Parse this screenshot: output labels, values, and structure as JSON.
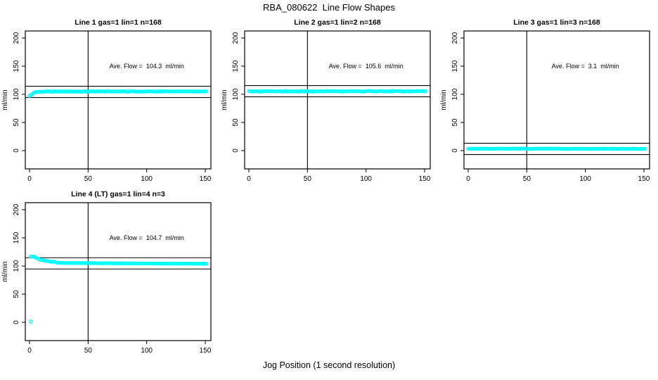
{
  "figure": {
    "title": "RBA_080622  Line Flow Shapes",
    "background": "#ffffff",
    "point_color": "#00ffff",
    "line_color": "#000000"
  },
  "chart_data": {
    "type": "scatter",
    "title": "RBA_080622  Line Flow Shapes",
    "xlabel": "Jog Position (1 second resolution)",
    "ylabel": "ml/min",
    "x_ticks": [
      0,
      50,
      100,
      150
    ],
    "y_ticks": [
      0,
      50,
      100,
      150,
      200
    ],
    "xlim": [
      -3.6,
      154.8
    ],
    "ylim": [
      -32.5,
      212.5
    ],
    "vline_x": 50,
    "grid": false,
    "marker": "open-circle",
    "point_color": "#00ffff",
    "annotation_anchor": {
      "x": 100,
      "y": 150
    },
    "panels": [
      {
        "title": "Line 1 gas=1 lin=1 n=168",
        "annotation": "Ave. Flow =  104.3  ml/min",
        "ave_flow": 104.3,
        "n": 168,
        "gas": 1,
        "lin": 1,
        "ref_lines": [
          114.3,
          94.3
        ],
        "x_start": 0,
        "x_end": 151,
        "anchors": [
          [
            0,
            96.8
          ],
          [
            1,
            98.2
          ],
          [
            2,
            100.2
          ],
          [
            3,
            101.8
          ],
          [
            4,
            103.2
          ],
          [
            5,
            103.9
          ],
          [
            7,
            104.4
          ],
          [
            10,
            104.8
          ],
          [
            15,
            105.0
          ],
          [
            151,
            105.1
          ]
        ],
        "jitter": 0.7,
        "extra_points": [],
        "row": 0,
        "col": 0
      },
      {
        "title": "Line 2 gas=1 lin=2 n=168",
        "annotation": "Ave. Flow =  105.6  ml/min",
        "ave_flow": 105.6,
        "n": 168,
        "gas": 1,
        "lin": 2,
        "ref_lines": [
          115.6,
          95.6
        ],
        "x_start": 0,
        "x_end": 151,
        "anchors": [
          [
            0,
            105.3
          ],
          [
            151,
            105.4
          ]
        ],
        "jitter": 0.8,
        "extra_points": [],
        "row": 0,
        "col": 1
      },
      {
        "title": "Line 3 gas=1 lin=3 n=168",
        "annotation": "Ave. Flow =  3.1  ml/min",
        "ave_flow": 3.1,
        "n": 168,
        "gas": 1,
        "lin": 3,
        "ref_lines": [
          13.1,
          -6.9
        ],
        "x_start": 0,
        "x_end": 151,
        "anchors": [
          [
            0,
            3.4
          ],
          [
            151,
            3.2
          ]
        ],
        "jitter": 0.5,
        "extra_points": [],
        "row": 0,
        "col": 2
      },
      {
        "title": "Line 4 (LT) gas=1 lin=4 n=3",
        "annotation": "Ave. Flow =  104.7  ml/min",
        "ave_flow": 104.7,
        "n": 3,
        "gas": 1,
        "lin": 4,
        "ref_lines": [
          114.7,
          94.7
        ],
        "x_start": 1,
        "x_end": 151,
        "anchors": [
          [
            1,
            116.8
          ],
          [
            4,
            116.6
          ],
          [
            5,
            115.0
          ],
          [
            7,
            113.0
          ],
          [
            9,
            111.3
          ],
          [
            11,
            110.5
          ],
          [
            13,
            109.6
          ],
          [
            15,
            109.0
          ],
          [
            17,
            108.2
          ],
          [
            19,
            107.2
          ],
          [
            21,
            107.8
          ],
          [
            23,
            106.2
          ],
          [
            25,
            105.6
          ],
          [
            28,
            105.4
          ],
          [
            35,
            105.3
          ],
          [
            50,
            105.2
          ],
          [
            70,
            104.9
          ],
          [
            95,
            104.5
          ],
          [
            120,
            104.3
          ],
          [
            151,
            104.1
          ]
        ],
        "jitter": 0.35,
        "extra_points": [
          [
            1,
            1.5
          ]
        ],
        "row": 1,
        "col": 0
      }
    ]
  }
}
